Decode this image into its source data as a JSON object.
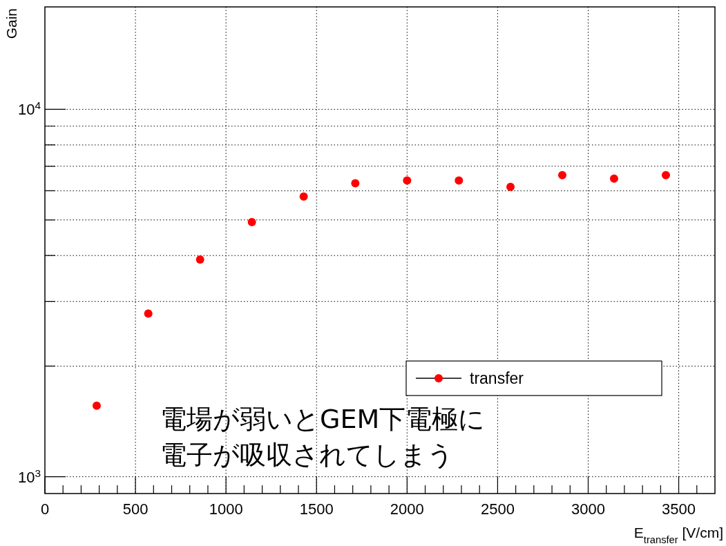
{
  "chart_data": {
    "type": "scatter",
    "ylabel": "Gain",
    "xlabel": "E$_{transfer}$ [V/cm]",
    "x": [
      286,
      571,
      857,
      1143,
      1429,
      1714,
      2000,
      2286,
      2571,
      2857,
      3143,
      3429
    ],
    "series": [
      {
        "name": "transfer",
        "color": "#ff0000",
        "values": [
          1560,
          2780,
          3900,
          4930,
          5790,
          6290,
          6400,
          6400,
          6150,
          6620,
          6480,
          6620
        ]
      }
    ],
    "marker": "circle",
    "legend": "bottom right",
    "grid": true,
    "log": "y",
    "xlim": [
      0,
      3700
    ],
    "xticks": [
      0,
      {
        "value": 100,
        "label": null
      },
      {
        "value": 200,
        "label": null
      },
      {
        "value": 300,
        "label": null
      },
      {
        "value": 400,
        "label": null
      },
      500,
      {
        "value": 600,
        "label": null
      },
      {
        "value": 700,
        "label": null
      },
      {
        "value": 800,
        "label": null
      },
      {
        "value": 900,
        "label": null
      },
      1000,
      {
        "value": 1100,
        "label": null
      },
      {
        "value": 1200,
        "label": null
      },
      {
        "value": 1300,
        "label": null
      },
      {
        "value": 1400,
        "label": null
      },
      1500,
      {
        "value": 1600,
        "label": null
      },
      {
        "value": 1700,
        "label": null
      },
      {
        "value": 1800,
        "label": null
      },
      {
        "value": 1900,
        "label": null
      },
      2000,
      {
        "value": 2100,
        "label": null
      },
      {
        "value": 2200,
        "label": null
      },
      {
        "value": 2300,
        "label": null
      },
      {
        "value": 2400,
        "label": null
      },
      2500,
      {
        "value": 2600,
        "label": null
      },
      {
        "value": 2700,
        "label": null
      },
      {
        "value": 2800,
        "label": null
      },
      {
        "value": 2900,
        "label": null
      },
      3000,
      {
        "value": 3100,
        "label": null
      },
      {
        "value": 3200,
        "label": null
      },
      {
        "value": 3300,
        "label": null
      },
      {
        "value": 3400,
        "label": null
      },
      3500,
      {
        "value": 3600,
        "label": null
      }
    ],
    "ylim": [
      900,
      19000
    ],
    "yticks": [
      {
        "value": 1000,
        "label": "10$^{3}$"
      },
      {
        "value": 2000,
        "label": null
      },
      {
        "value": 3000,
        "label": null
      },
      {
        "value": 4000,
        "label": null
      },
      {
        "value": 5000,
        "label": null
      },
      {
        "value": 6000,
        "label": null
      },
      {
        "value": 7000,
        "label": null
      },
      {
        "value": 8000,
        "label": null
      },
      {
        "value": 9000,
        "label": null
      },
      {
        "value": 10000,
        "label": "10$^{4}$"
      }
    ],
    "annotations": [
      "電場が弱いとGEM下電極に",
      "電子が吸収されてしまう"
    ]
  }
}
